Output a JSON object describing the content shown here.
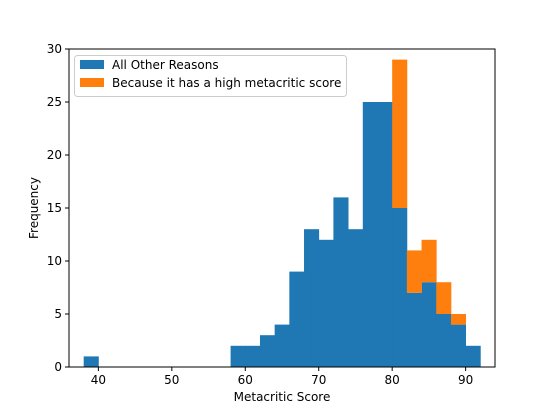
{
  "chart_data": {
    "type": "bar",
    "title": "",
    "xlabel": "Metacritic Score",
    "ylabel": "Frequency",
    "xlim": [
      36,
      94
    ],
    "ylim": [
      0,
      30
    ],
    "x_ticks": [
      40,
      50,
      60,
      70,
      80,
      90
    ],
    "y_ticks": [
      0,
      5,
      10,
      15,
      20,
      25,
      30
    ],
    "grid": false,
    "legend_position": "top-left",
    "stacked": true,
    "bin_width": 2,
    "bin_starts": [
      38,
      40,
      42,
      44,
      46,
      48,
      50,
      52,
      54,
      56,
      58,
      60,
      62,
      64,
      66,
      68,
      70,
      72,
      74,
      76,
      78,
      80,
      82,
      84,
      86,
      88,
      90
    ],
    "series": [
      {
        "name": "All Other Reasons",
        "color": "#1f77b4",
        "values": [
          1,
          0,
          0,
          0,
          0,
          0,
          0,
          0,
          0,
          0,
          2,
          2,
          3,
          4,
          9,
          13,
          12,
          16,
          13,
          25,
          25,
          15,
          7,
          8,
          5,
          4,
          2
        ]
      },
      {
        "name": "Because it has a high metacritic score",
        "color": "#ff7f0e",
        "values": [
          0,
          0,
          0,
          0,
          0,
          0,
          0,
          0,
          0,
          0,
          0,
          0,
          0,
          0,
          0,
          0,
          0,
          0,
          0,
          0,
          0,
          14,
          4,
          4,
          3,
          1,
          0
        ]
      }
    ]
  }
}
